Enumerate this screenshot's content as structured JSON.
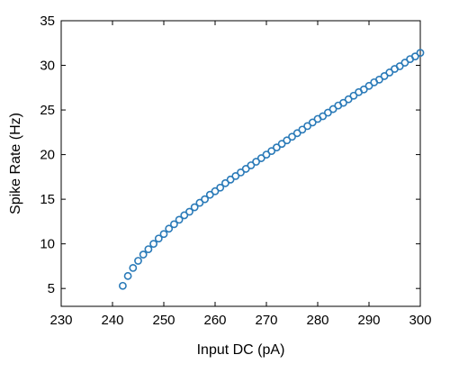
{
  "chart_data": {
    "type": "scatter",
    "xlabel": "Input DC (pA)",
    "ylabel": "Spike Rate (Hz)",
    "xlim": [
      230,
      300
    ],
    "ylim": [
      3,
      35
    ],
    "xticks": [
      230,
      240,
      250,
      260,
      270,
      280,
      290,
      300
    ],
    "yticks": [
      5,
      10,
      15,
      20,
      25,
      30,
      35
    ],
    "grid": false,
    "marker": "open-circle",
    "marker_color": "#2a7ab8",
    "series": [
      {
        "x": [
          242,
          243,
          244,
          245,
          246,
          247,
          248,
          249,
          250,
          251,
          252,
          253,
          254,
          255,
          256,
          257,
          258,
          259,
          260,
          261,
          262,
          263,
          264,
          265,
          266,
          267,
          268,
          269,
          270,
          271,
          272,
          273,
          274,
          275,
          276,
          277,
          278,
          279,
          280,
          281,
          282,
          283,
          284,
          285,
          286,
          287,
          288,
          289,
          290,
          291,
          292,
          293,
          294,
          295,
          296,
          297,
          298,
          299,
          300
        ],
        "y": [
          5.3,
          6.4,
          7.3,
          8.1,
          8.8,
          9.4,
          10.0,
          10.6,
          11.1,
          11.7,
          12.2,
          12.7,
          13.2,
          13.6,
          14.1,
          14.6,
          15.0,
          15.5,
          15.9,
          16.3,
          16.8,
          17.2,
          17.6,
          18.0,
          18.4,
          18.8,
          19.2,
          19.6,
          20.0,
          20.4,
          20.8,
          21.2,
          21.6,
          22.0,
          22.4,
          22.8,
          23.2,
          23.6,
          24.0,
          24.3,
          24.7,
          25.1,
          25.5,
          25.8,
          26.2,
          26.6,
          27.0,
          27.3,
          27.7,
          28.1,
          28.4,
          28.8,
          29.2,
          29.6,
          29.9,
          30.3,
          30.7,
          31.0,
          31.4
        ]
      }
    ]
  }
}
